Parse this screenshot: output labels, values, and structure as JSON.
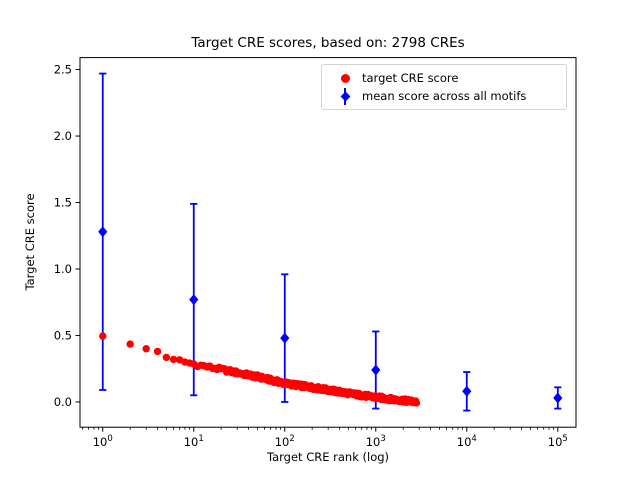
{
  "figure": {
    "title": "Target CRE scores, based on: 2798 CREs",
    "xlabel": "Target CRE rank (log)",
    "ylabel": "Target CRE score",
    "background": "#ffffff"
  },
  "chart_data": {
    "type": "scatter",
    "title": "Target CRE scores, based on: 2798 CREs",
    "xlabel": "Target CRE rank (log)",
    "ylabel": "Target CRE score",
    "x_scale": "log",
    "xlim_log10": [
      -0.25,
      5.2
    ],
    "ylim": [
      -0.19,
      2.59
    ],
    "grid": false,
    "x_ticks": [
      1,
      10,
      100,
      1000,
      10000,
      100000
    ],
    "x_tick_labels": [
      {
        "base": "10",
        "exp": "0"
      },
      {
        "base": "10",
        "exp": "1"
      },
      {
        "base": "10",
        "exp": "2"
      },
      {
        "base": "10",
        "exp": "3"
      },
      {
        "base": "10",
        "exp": "4"
      },
      {
        "base": "10",
        "exp": "5"
      }
    ],
    "y_ticks": [
      0.0,
      0.5,
      1.0,
      1.5,
      2.0,
      2.5
    ],
    "y_tick_labels": [
      "0.0",
      "0.5",
      "1.0",
      "1.5",
      "2.0",
      "2.5"
    ],
    "series": [
      {
        "name": "target CRE score",
        "type": "scatter",
        "marker": "circle",
        "color": "#ff0000",
        "n_points": 2798,
        "rank_range": [
          1,
          2798
        ],
        "trend_anchor_ranks": [
          1,
          2,
          3,
          4,
          5,
          6,
          7,
          8,
          10,
          14,
          20,
          30,
          50,
          70,
          100,
          150,
          200,
          300,
          500,
          700,
          1000,
          1500,
          2000,
          2500,
          2798
        ],
        "trend_anchor_scores": [
          0.495,
          0.435,
          0.4,
          0.38,
          0.335,
          0.32,
          0.31,
          0.3,
          0.285,
          0.265,
          0.245,
          0.22,
          0.19,
          0.165,
          0.14,
          0.122,
          0.11,
          0.09,
          0.065,
          0.05,
          0.035,
          0.02,
          0.011,
          0.004,
          0.0
        ]
      },
      {
        "name": "mean score across all motifs",
        "type": "errorbar",
        "marker": "diamond",
        "color": "#0000ff",
        "x": [
          1,
          10,
          100,
          1000,
          10000,
          100000
        ],
        "mean": [
          1.28,
          0.77,
          0.48,
          0.24,
          0.08,
          0.03
        ],
        "err": [
          1.19,
          0.72,
          0.48,
          0.29,
          0.145,
          0.08
        ]
      }
    ],
    "legend": {
      "position": "upper right",
      "items": [
        "target CRE score",
        "mean score across all motifs"
      ]
    }
  },
  "colors": {
    "red_series": "#ff0000",
    "blue_series": "#0000ff",
    "axis": "#000000",
    "legend_border": "#d5d5d5"
  }
}
